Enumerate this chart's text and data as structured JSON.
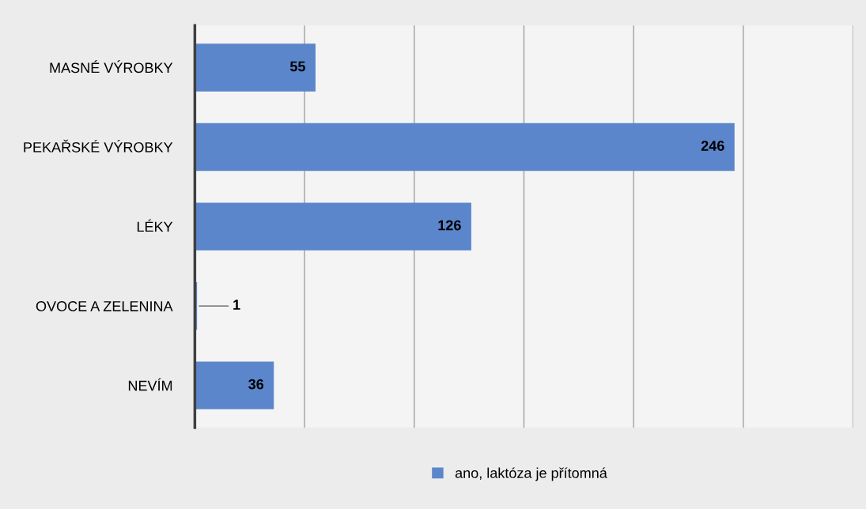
{
  "chart_data": {
    "type": "bar",
    "orientation": "horizontal",
    "categories": [
      "MASNÉ VÝROBKY",
      "PEKAŘSKÉ VÝROBKY",
      "LÉKY",
      "OVOCE A ZELENINA",
      "NEVÍM"
    ],
    "series": [
      {
        "name": "ano, laktóza je přítomná",
        "color": "#5b86cc",
        "values": [
          55,
          246,
          126,
          1,
          36
        ]
      }
    ],
    "xlim": [
      0,
      300
    ],
    "xticks": [
      {
        "value": 0,
        "label": null
      },
      {
        "value": 50,
        "label": null
      },
      {
        "value": 100,
        "label": null
      },
      {
        "value": 150,
        "label": null
      },
      {
        "value": 200,
        "label": null
      },
      {
        "value": 250,
        "label": null
      },
      {
        "value": 300,
        "label": null
      }
    ],
    "tick_labels": "y",
    "grid": "x",
    "legend": "bottom",
    "data_labels": true
  }
}
